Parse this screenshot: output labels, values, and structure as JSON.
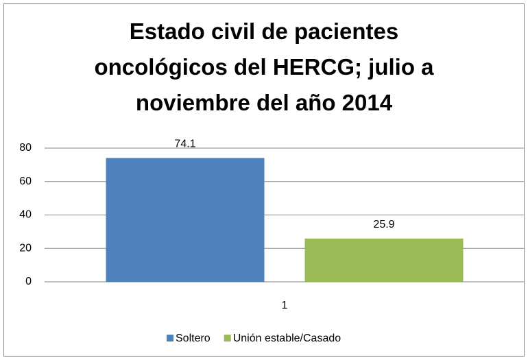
{
  "chart_data": {
    "type": "bar",
    "title": "Estado civil de pacientes oncológicos del HERCG; julio a noviembre del año 2014",
    "categories": [
      "1"
    ],
    "series": [
      {
        "name": "Soltero",
        "color": "#4f81bd",
        "values": [
          74.1
        ]
      },
      {
        "name": "Unión estable/Casado",
        "color": "#9bbb59",
        "values": [
          25.9
        ]
      }
    ],
    "ylim": [
      0,
      80
    ],
    "yticks": [
      0,
      20,
      40,
      60,
      80
    ],
    "grid": true,
    "legend": "bottom"
  }
}
